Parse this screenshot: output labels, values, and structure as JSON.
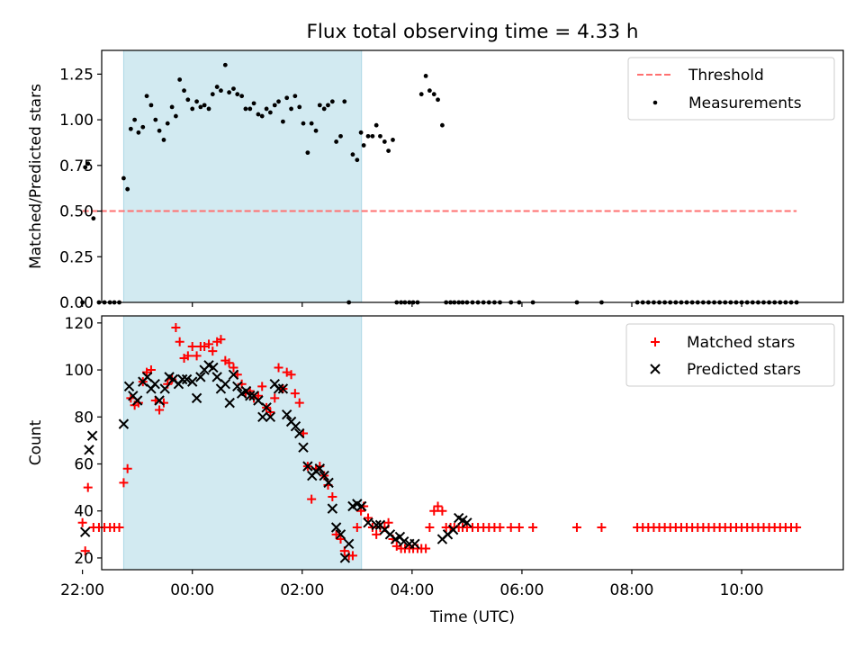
{
  "title": "Flux total observing time = 4.33 h",
  "colors": {
    "threshold": "#ff7070",
    "measurements": "#000000",
    "matched": "#ff0000",
    "predicted": "#000000",
    "highlight": "#add8e6"
  },
  "chart_data": [
    {
      "type": "scatter",
      "xlabel": "",
      "ylabel": "Matched/Predicted stars",
      "ylim": [
        0,
        1.38
      ],
      "xlim": [
        -1.65,
        11.85
      ],
      "x_units": "hours after 00:00 UTC (ticks labeled as clock times)",
      "yticks": [
        "0.00",
        "0.25",
        "0.50",
        "0.75",
        "1.00",
        "1.25"
      ],
      "highlight_span": [
        -1.25,
        3.08
      ],
      "legend": {
        "position": "top-right",
        "entries": [
          "Threshold",
          "Measurements"
        ]
      },
      "series": [
        {
          "name": "Threshold",
          "style": "dashed-line",
          "x": [
            -2.0,
            11.0
          ],
          "y": [
            0.5,
            0.5
          ]
        },
        {
          "name": "Measurements",
          "style": "dot",
          "x": [
            -2.0,
            -1.95,
            -1.9,
            -1.8,
            -1.7,
            -1.6,
            -1.5,
            -1.42,
            -1.33,
            -1.25,
            -1.18,
            -1.12,
            -1.05,
            -0.98,
            -0.9,
            -0.83,
            -0.75,
            -0.67,
            -0.6,
            -0.52,
            -0.45,
            -0.37,
            -0.3,
            -0.23,
            -0.15,
            -0.08,
            0.0,
            0.08,
            0.15,
            0.22,
            0.3,
            0.37,
            0.45,
            0.52,
            0.6,
            0.67,
            0.75,
            0.82,
            0.9,
            0.97,
            1.05,
            1.12,
            1.2,
            1.27,
            1.35,
            1.42,
            1.5,
            1.57,
            1.65,
            1.72,
            1.8,
            1.87,
            1.95,
            2.02,
            2.1,
            2.17,
            2.25,
            2.32,
            2.4,
            2.47,
            2.55,
            2.62,
            2.7,
            2.77,
            2.85,
            2.92,
            3.0,
            3.07,
            3.12,
            3.2,
            3.28,
            3.35,
            3.42,
            3.5,
            3.57,
            3.65,
            3.72,
            3.8,
            3.87,
            3.95,
            4.02,
            4.1,
            4.17,
            4.25,
            4.32,
            4.4,
            4.47,
            4.55,
            4.62,
            4.7,
            4.77,
            4.85,
            4.92,
            5.0,
            5.1,
            5.2,
            5.3,
            5.4,
            5.5,
            5.6,
            5.8,
            5.95,
            6.2,
            7.0,
            7.45,
            8.1,
            8.2,
            8.3,
            8.4,
            8.5,
            8.6,
            8.7,
            8.8,
            8.9,
            9.0,
            9.1,
            9.2,
            9.3,
            9.4,
            9.5,
            9.6,
            9.7,
            9.8,
            9.9,
            10.0,
            10.1,
            10.2,
            10.3,
            10.4,
            10.5,
            10.6,
            10.7,
            10.8,
            10.9,
            11.0
          ],
          "y": [
            0.0,
            0.74,
            0.76,
            0.46,
            0.0,
            0.0,
            0.0,
            0.0,
            0.0,
            0.68,
            0.62,
            0.95,
            1.0,
            0.93,
            0.96,
            1.13,
            1.08,
            1.0,
            0.94,
            0.89,
            0.98,
            1.07,
            1.02,
            1.22,
            1.16,
            1.11,
            1.06,
            1.1,
            1.07,
            1.08,
            1.06,
            1.14,
            1.18,
            1.16,
            1.3,
            1.15,
            1.17,
            1.14,
            1.13,
            1.06,
            1.06,
            1.09,
            1.03,
            1.02,
            1.06,
            1.04,
            1.08,
            1.1,
            0.99,
            1.12,
            1.06,
            1.13,
            1.07,
            0.98,
            0.82,
            0.98,
            0.94,
            1.08,
            1.06,
            1.08,
            1.1,
            0.88,
            0.91,
            1.1,
            0.0,
            0.81,
            0.78,
            0.93,
            0.86,
            0.91,
            0.91,
            0.97,
            0.91,
            0.88,
            0.83,
            0.89,
            0.0,
            0.0,
            0.0,
            0.0,
            0.0,
            0.0,
            1.14,
            1.24,
            1.16,
            1.14,
            1.11,
            0.97,
            0.0,
            0.0,
            0.0,
            0.0,
            0.0,
            0.0,
            0.0,
            0.0,
            0.0,
            0.0,
            0.0,
            0.0,
            0.0,
            0.0,
            0.0,
            0.0,
            0.0,
            0.0,
            0.0,
            0.0,
            0.0,
            0.0,
            0.0,
            0.0,
            0.0,
            0.0,
            0.0,
            0.0,
            0.0,
            0.0,
            0.0,
            0.0,
            0.0,
            0.0,
            0.0,
            0.0,
            0.0,
            0.0,
            0.0,
            0.0,
            0.0,
            0.0,
            0.0,
            0.0,
            0.0,
            0.0,
            0.0
          ]
        }
      ]
    },
    {
      "type": "scatter",
      "xlabel": "Time (UTC)",
      "ylabel": "Count",
      "ylim": [
        15,
        123
      ],
      "xlim": [
        -1.65,
        11.85
      ],
      "xticks": {
        "values": [
          -2,
          0,
          2,
          4,
          6,
          8,
          10
        ],
        "labels": [
          "22:00",
          "00:00",
          "02:00",
          "04:00",
          "06:00",
          "08:00",
          "10:00"
        ]
      },
      "yticks": [
        20,
        40,
        60,
        80,
        100,
        120
      ],
      "highlight_span": [
        -1.25,
        3.08
      ],
      "legend": {
        "position": "top-right",
        "entries": [
          "Matched stars",
          "Predicted stars"
        ]
      },
      "series": [
        {
          "name": "Matched stars",
          "marker": "plus",
          "x": [
            -2.0,
            -1.95,
            -1.9,
            -1.8,
            -1.7,
            -1.6,
            -1.5,
            -1.42,
            -1.33,
            -1.25,
            -1.18,
            -1.12,
            -1.05,
            -0.98,
            -0.9,
            -0.83,
            -0.75,
            -0.67,
            -0.6,
            -0.52,
            -0.45,
            -0.37,
            -0.3,
            -0.23,
            -0.15,
            -0.08,
            0.0,
            0.08,
            0.15,
            0.22,
            0.3,
            0.37,
            0.45,
            0.52,
            0.6,
            0.67,
            0.75,
            0.82,
            0.9,
            0.97,
            1.05,
            1.12,
            1.2,
            1.27,
            1.35,
            1.42,
            1.5,
            1.57,
            1.65,
            1.72,
            1.8,
            1.87,
            1.95,
            2.02,
            2.1,
            2.17,
            2.25,
            2.32,
            2.4,
            2.47,
            2.55,
            2.62,
            2.7,
            2.77,
            2.85,
            2.92,
            3.0,
            3.07,
            3.12,
            3.2,
            3.28,
            3.35,
            3.42,
            3.5,
            3.57,
            3.65,
            3.72,
            3.8,
            3.87,
            3.95,
            4.02,
            4.1,
            4.17,
            4.25,
            4.32,
            4.4,
            4.47,
            4.55,
            4.62,
            4.7,
            4.77,
            4.85,
            4.92,
            5.0,
            5.1,
            5.2,
            5.3,
            5.4,
            5.5,
            5.6,
            5.8,
            5.95,
            6.2,
            7.0,
            7.45,
            8.1,
            8.2,
            8.3,
            8.4,
            8.5,
            8.6,
            8.7,
            8.8,
            8.9,
            9.0,
            9.1,
            9.2,
            9.3,
            9.4,
            9.5,
            9.6,
            9.7,
            9.8,
            9.9,
            10.0,
            10.1,
            10.2,
            10.3,
            10.4,
            10.5,
            10.6,
            10.7,
            10.8,
            10.9,
            11.0
          ],
          "y": [
            35,
            23,
            50,
            33,
            33,
            33,
            33,
            33,
            33,
            52,
            58,
            88,
            85,
            86,
            95,
            99,
            100,
            87,
            83,
            86,
            94,
            96,
            118,
            112,
            105,
            106,
            110,
            106,
            110,
            110,
            111,
            108,
            112,
            113,
            104,
            103,
            101,
            98,
            94,
            90,
            91,
            88,
            89,
            93,
            84,
            82,
            88,
            101,
            92,
            99,
            98,
            90,
            86,
            73,
            59,
            45,
            58,
            59,
            55,
            51,
            46,
            30,
            28,
            23,
            21,
            21,
            33,
            40,
            42,
            37,
            33,
            30,
            33,
            33,
            35,
            28,
            25,
            24,
            24,
            24,
            24,
            24,
            24,
            24,
            33,
            40,
            42,
            40,
            33,
            33,
            33,
            33,
            33,
            33,
            33,
            33,
            33,
            33,
            33,
            33,
            33,
            33,
            33,
            33,
            33,
            33,
            33,
            33,
            33,
            33,
            33,
            33,
            33,
            33,
            33,
            33,
            33,
            33,
            33,
            33,
            33,
            33,
            33,
            33,
            33,
            33,
            33,
            33,
            33,
            33,
            33,
            33,
            33,
            33,
            33
          ]
        },
        {
          "name": "Predicted stars",
          "marker": "x",
          "x": [
            -1.95,
            -1.88,
            -1.82,
            -1.25,
            -1.15,
            -1.08,
            -1.0,
            -0.9,
            -0.82,
            -0.75,
            -0.68,
            -0.6,
            -0.5,
            -0.42,
            -0.35,
            -0.25,
            -0.18,
            -0.1,
            0.0,
            0.08,
            0.15,
            0.22,
            0.3,
            0.38,
            0.45,
            0.52,
            0.6,
            0.68,
            0.75,
            0.82,
            0.9,
            0.98,
            1.05,
            1.12,
            1.2,
            1.28,
            1.35,
            1.42,
            1.5,
            1.57,
            1.65,
            1.72,
            1.8,
            1.88,
            1.95,
            2.02,
            2.1,
            2.18,
            2.25,
            2.32,
            2.4,
            2.48,
            2.55,
            2.62,
            2.7,
            2.78,
            2.85,
            2.92,
            3.0,
            3.08,
            3.2,
            3.35,
            3.42,
            3.5,
            3.6,
            3.7,
            3.78,
            3.85,
            3.95,
            4.05,
            4.55,
            4.65,
            4.75,
            4.85,
            4.92,
            5.0
          ],
          "y": [
            31,
            66,
            72,
            77,
            93,
            89,
            87,
            95,
            97,
            92,
            94,
            87,
            92,
            97,
            96,
            94,
            96,
            96,
            95,
            88,
            97,
            100,
            102,
            101,
            97,
            92,
            94,
            86,
            98,
            93,
            90,
            91,
            89,
            89,
            87,
            80,
            84,
            80,
            94,
            92,
            92,
            81,
            78,
            76,
            73,
            67,
            59,
            55,
            57,
            58,
            55,
            52,
            41,
            33,
            30,
            20,
            26,
            42,
            43,
            42,
            35,
            34,
            34,
            32,
            30,
            28,
            29,
            27,
            26,
            26,
            28,
            30,
            32,
            37,
            36,
            35
          ]
        }
      ]
    }
  ]
}
